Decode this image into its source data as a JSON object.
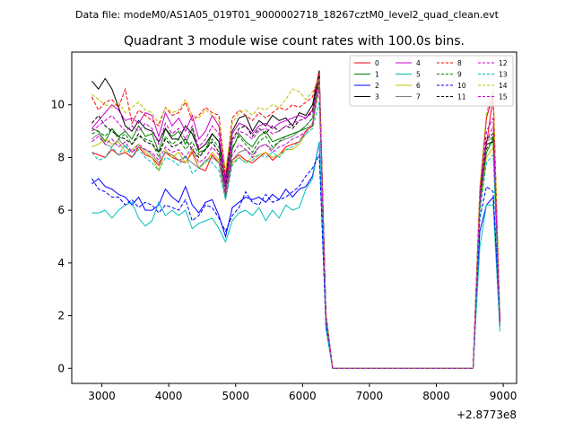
{
  "chart_data": {
    "type": "line",
    "suptitle": "Data file: modeM0/AS1A05_019T01_9000002718_18267cztM0_level2_quad_clean.evt",
    "title": "Quadrant 3 module wise count rates with 100.0s bins.",
    "xlabel": "",
    "ylabel": "",
    "x_offset_label": "+2.8773e8",
    "xlim": [
      2550,
      9200
    ],
    "ylim": [
      -0.57,
      12.0
    ],
    "xticks": [
      3000,
      4000,
      5000,
      6000,
      7000,
      8000,
      9000
    ],
    "xtick_labels": [
      "3000",
      "4000",
      "5000",
      "6000",
      "7000",
      "8000",
      "9000"
    ],
    "yticks": [
      0,
      2,
      4,
      6,
      8,
      10
    ],
    "ytick_labels": [
      "0",
      "2",
      "4",
      "6",
      "8",
      "10"
    ],
    "grid": false,
    "legend_position": "top-right",
    "legend_columns": 4,
    "x": [
      2850,
      2950,
      3050,
      3150,
      3250,
      3350,
      3450,
      3550,
      3650,
      3750,
      3850,
      3950,
      4050,
      4150,
      4250,
      4350,
      4450,
      4550,
      4650,
      4750,
      4850,
      4950,
      5050,
      5150,
      5250,
      5350,
      5450,
      5550,
      5650,
      5750,
      5850,
      5950,
      6050,
      6150,
      6250,
      6350,
      6450,
      6550,
      6650,
      6750,
      6850,
      6950,
      7050,
      7150,
      7250,
      7350,
      7450,
      7550,
      7650,
      7750,
      7850,
      7950,
      8050,
      8150,
      8250,
      8350,
      8450,
      8550,
      8650,
      8750,
      8850,
      8950
    ],
    "series": [
      {
        "name": "0",
        "color": "#ff0000",
        "dash": "solid",
        "values": [
          8.2,
          8.1,
          8.0,
          8.3,
          8.1,
          8.2,
          8.0,
          8.4,
          8.1,
          8.0,
          7.7,
          8.2,
          8.0,
          7.9,
          7.8,
          8.2,
          7.6,
          7.5,
          8.1,
          7.8,
          7.0,
          7.9,
          8.1,
          7.9,
          7.8,
          8.0,
          8.2,
          7.9,
          8.1,
          8.4,
          8.5,
          8.6,
          9.0,
          9.2,
          11.0,
          2.0,
          0.0,
          0.0,
          0.0,
          0.0,
          0.0,
          0.0,
          0.0,
          0.0,
          0.0,
          0.0,
          0.0,
          0.0,
          0.0,
          0.0,
          0.0,
          0.0,
          0.0,
          0.0,
          0.0,
          0.0,
          0.0,
          0.0,
          6.5,
          8.5,
          10.3,
          1.6
        ]
      },
      {
        "name": "1",
        "color": "#008000",
        "dash": "solid",
        "values": [
          9.1,
          9.0,
          8.6,
          9.1,
          8.8,
          9.0,
          8.7,
          9.2,
          8.8,
          8.9,
          8.2,
          9.1,
          8.8,
          9.0,
          8.5,
          9.1,
          8.2,
          8.3,
          8.9,
          8.6,
          6.5,
          8.3,
          8.9,
          8.6,
          8.4,
          8.8,
          9.0,
          8.6,
          8.7,
          8.8,
          8.9,
          9.0,
          9.1,
          9.2,
          10.9,
          1.8,
          0.0,
          0.0,
          0.0,
          0.0,
          0.0,
          0.0,
          0.0,
          0.0,
          0.0,
          0.0,
          0.0,
          0.0,
          0.0,
          0.0,
          0.0,
          0.0,
          0.0,
          0.0,
          0.0,
          0.0,
          0.0,
          0.0,
          6.3,
          8.2,
          8.7,
          1.6
        ]
      },
      {
        "name": "2",
        "color": "#0000ff",
        "dash": "solid",
        "values": [
          7.0,
          7.2,
          6.9,
          6.8,
          6.6,
          6.5,
          6.2,
          6.5,
          6.0,
          6.0,
          6.2,
          6.8,
          6.5,
          6.3,
          6.9,
          6.2,
          5.9,
          6.3,
          6.4,
          5.8,
          5.0,
          6.1,
          6.3,
          6.5,
          6.4,
          6.5,
          6.3,
          6.6,
          6.4,
          6.8,
          6.5,
          6.8,
          6.9,
          7.3,
          8.6,
          1.6,
          0.0,
          0.0,
          0.0,
          0.0,
          0.0,
          0.0,
          0.0,
          0.0,
          0.0,
          0.0,
          0.0,
          0.0,
          0.0,
          0.0,
          0.0,
          0.0,
          0.0,
          0.0,
          0.0,
          0.0,
          0.0,
          0.0,
          5.2,
          6.2,
          6.5,
          1.7
        ]
      },
      {
        "name": "3",
        "color": "#000000",
        "dash": "solid",
        "values": [
          10.9,
          10.6,
          11.0,
          10.6,
          9.9,
          9.2,
          9.0,
          9.4,
          9.1,
          9.0,
          8.6,
          9.1,
          8.7,
          8.7,
          9.2,
          8.9,
          8.3,
          8.5,
          8.9,
          8.6,
          7.2,
          9.0,
          9.5,
          9.6,
          9.0,
          9.4,
          9.2,
          9.6,
          9.4,
          9.5,
          9.2,
          9.7,
          9.6,
          10.0,
          11.3,
          2.1,
          0.0,
          0.0,
          0.0,
          0.0,
          0.0,
          0.0,
          0.0,
          0.0,
          0.0,
          0.0,
          0.0,
          0.0,
          0.0,
          0.0,
          0.0,
          0.0,
          0.0,
          0.0,
          0.0,
          0.0,
          0.0,
          0.0,
          6.6,
          8.5,
          8.6,
          1.9
        ]
      },
      {
        "name": "4",
        "color": "#cc00cc",
        "dash": "solid",
        "values": [
          9.1,
          9.4,
          9.7,
          10.0,
          9.8,
          9.4,
          9.5,
          9.3,
          9.7,
          9.6,
          8.8,
          9.7,
          9.2,
          9.5,
          9.0,
          9.6,
          8.7,
          9.0,
          9.6,
          9.2,
          7.0,
          8.9,
          9.3,
          9.2,
          8.9,
          9.2,
          9.3,
          9.1,
          9.3,
          9.4,
          9.5,
          9.6,
          9.5,
          9.8,
          11.2,
          2.0,
          0.0,
          0.0,
          0.0,
          0.0,
          0.0,
          0.0,
          0.0,
          0.0,
          0.0,
          0.0,
          0.0,
          0.0,
          0.0,
          0.0,
          0.0,
          0.0,
          0.0,
          0.0,
          0.0,
          0.0,
          0.0,
          0.0,
          6.8,
          9.5,
          10.4,
          1.8
        ]
      },
      {
        "name": "5",
        "color": "#00bfbf",
        "dash": "solid",
        "values": [
          5.9,
          5.9,
          6.0,
          5.7,
          6.0,
          6.2,
          6.3,
          5.7,
          5.4,
          5.6,
          6.3,
          5.8,
          6.0,
          5.8,
          6.0,
          5.3,
          5.5,
          5.6,
          5.7,
          5.3,
          4.8,
          5.6,
          5.9,
          6.0,
          5.8,
          6.1,
          5.6,
          6.0,
          5.7,
          6.2,
          6.0,
          6.1,
          6.8,
          7.2,
          8.6,
          1.5,
          0.0,
          0.0,
          0.0,
          0.0,
          0.0,
          0.0,
          0.0,
          0.0,
          0.0,
          0.0,
          0.0,
          0.0,
          0.0,
          0.0,
          0.0,
          0.0,
          0.0,
          0.0,
          0.0,
          0.0,
          0.0,
          0.0,
          4.6,
          6.2,
          6.2,
          1.4
        ]
      },
      {
        "name": "6",
        "color": "#bfbf00",
        "dash": "solid",
        "values": [
          8.4,
          8.5,
          8.7,
          8.5,
          8.6,
          8.2,
          8.3,
          8.5,
          8.2,
          8.0,
          7.5,
          8.3,
          8.0,
          8.2,
          7.8,
          8.3,
          7.6,
          7.8,
          8.2,
          7.9,
          6.6,
          7.8,
          8.0,
          7.8,
          8.0,
          8.1,
          8.2,
          8.0,
          8.1,
          8.3,
          8.3,
          8.5,
          8.9,
          9.3,
          10.8,
          1.9,
          0.0,
          0.0,
          0.0,
          0.0,
          0.0,
          0.0,
          0.0,
          0.0,
          0.0,
          0.0,
          0.0,
          0.0,
          0.0,
          0.0,
          0.0,
          0.0,
          0.0,
          0.0,
          0.0,
          0.0,
          0.0,
          0.0,
          6.0,
          8.0,
          8.4,
          1.7
        ]
      },
      {
        "name": "7",
        "color": "#808080",
        "dash": "solid",
        "values": [
          8.7,
          8.9,
          8.5,
          8.4,
          8.7,
          8.4,
          8.2,
          8.4,
          8.3,
          8.1,
          7.8,
          8.2,
          8.1,
          7.9,
          8.0,
          7.8,
          7.6,
          7.9,
          8.0,
          7.8,
          6.4,
          7.9,
          8.2,
          8.3,
          8.1,
          8.4,
          8.5,
          8.3,
          8.6,
          8.7,
          8.8,
          9.0,
          9.2,
          9.5,
          11.1,
          1.9,
          0.0,
          0.0,
          0.0,
          0.0,
          0.0,
          0.0,
          0.0,
          0.0,
          0.0,
          0.0,
          0.0,
          0.0,
          0.0,
          0.0,
          0.0,
          0.0,
          0.0,
          0.0,
          0.0,
          0.0,
          0.0,
          0.0,
          6.4,
          8.6,
          8.8,
          1.8
        ]
      },
      {
        "name": "8",
        "color": "#ff0000",
        "dash": "dashed",
        "values": [
          10.3,
          9.8,
          10.1,
          10.2,
          9.9,
          10.6,
          9.3,
          9.8,
          9.6,
          9.4,
          9.2,
          9.9,
          9.6,
          9.7,
          10.1,
          9.4,
          9.6,
          9.9,
          9.7,
          9.6,
          7.3,
          9.5,
          9.8,
          9.6,
          9.4,
          9.7,
          9.5,
          9.7,
          9.9,
          9.8,
          10.0,
          9.9,
          10.1,
          10.3,
          11.2,
          2.0,
          0.0,
          0.0,
          0.0,
          0.0,
          0.0,
          0.0,
          0.0,
          0.0,
          0.0,
          0.0,
          0.0,
          0.0,
          0.0,
          0.0,
          0.0,
          0.0,
          0.0,
          0.0,
          0.0,
          0.0,
          0.0,
          0.0,
          6.7,
          9.5,
          10.5,
          1.9
        ]
      },
      {
        "name": "9",
        "color": "#008000",
        "dash": "dashed",
        "values": [
          8.9,
          9.0,
          8.8,
          9.1,
          8.7,
          8.9,
          8.5,
          8.8,
          8.7,
          8.6,
          8.0,
          8.8,
          8.5,
          8.7,
          8.3,
          8.6,
          8.1,
          8.3,
          8.7,
          8.4,
          6.7,
          8.4,
          8.8,
          8.5,
          8.2,
          8.6,
          8.8,
          8.4,
          8.6,
          8.8,
          8.9,
          9.0,
          9.2,
          9.5,
          10.9,
          1.9,
          0.0,
          0.0,
          0.0,
          0.0,
          0.0,
          0.0,
          0.0,
          0.0,
          0.0,
          0.0,
          0.0,
          0.0,
          0.0,
          0.0,
          0.0,
          0.0,
          0.0,
          0.0,
          0.0,
          0.0,
          0.0,
          0.0,
          6.2,
          8.3,
          8.8,
          1.7
        ]
      },
      {
        "name": "10",
        "color": "#0000ff",
        "dash": "dashed",
        "values": [
          7.2,
          6.8,
          6.7,
          6.5,
          6.5,
          6.2,
          6.4,
          6.1,
          6.3,
          6.2,
          5.9,
          6.2,
          6.1,
          6.0,
          6.4,
          5.6,
          5.8,
          6.2,
          6.1,
          5.7,
          5.2,
          5.8,
          6.1,
          6.7,
          6.3,
          6.2,
          6.6,
          6.3,
          6.4,
          6.5,
          6.7,
          6.9,
          7.3,
          7.6,
          8.1,
          1.7,
          0.0,
          0.0,
          0.0,
          0.0,
          0.0,
          0.0,
          0.0,
          0.0,
          0.0,
          0.0,
          0.0,
          0.0,
          0.0,
          0.0,
          0.0,
          0.0,
          0.0,
          0.0,
          0.0,
          0.0,
          0.0,
          0.0,
          5.7,
          6.9,
          6.7,
          1.8
        ]
      },
      {
        "name": "11",
        "color": "#000000",
        "dash": "dashed",
        "values": [
          9.3,
          9.6,
          9.2,
          9.0,
          8.8,
          8.7,
          8.5,
          8.9,
          8.6,
          8.5,
          8.2,
          8.7,
          8.4,
          8.5,
          8.7,
          8.3,
          8.0,
          8.3,
          8.6,
          8.2,
          6.9,
          8.7,
          9.1,
          9.2,
          8.8,
          9.1,
          8.9,
          9.2,
          9.0,
          9.2,
          9.1,
          9.4,
          9.5,
          9.8,
          11.1,
          2.0,
          0.0,
          0.0,
          0.0,
          0.0,
          0.0,
          0.0,
          0.0,
          0.0,
          0.0,
          0.0,
          0.0,
          0.0,
          0.0,
          0.0,
          0.0,
          0.0,
          0.0,
          0.0,
          0.0,
          0.0,
          0.0,
          0.0,
          6.5,
          8.7,
          8.9,
          1.8
        ]
      },
      {
        "name": "12",
        "color": "#cc00cc",
        "dash": "dashed",
        "values": [
          9.0,
          9.2,
          9.4,
          9.6,
          9.3,
          9.0,
          9.2,
          9.0,
          9.3,
          9.1,
          8.5,
          9.3,
          8.9,
          9.1,
          8.7,
          9.2,
          8.4,
          8.7,
          9.2,
          8.9,
          6.8,
          8.6,
          9.0,
          8.9,
          8.7,
          9.0,
          9.1,
          8.9,
          9.0,
          9.2,
          9.3,
          9.4,
          9.5,
          9.7,
          11.0,
          2.0,
          0.0,
          0.0,
          0.0,
          0.0,
          0.0,
          0.0,
          0.0,
          0.0,
          0.0,
          0.0,
          0.0,
          0.0,
          0.0,
          0.0,
          0.0,
          0.0,
          0.0,
          0.0,
          0.0,
          0.0,
          0.0,
          0.0,
          6.6,
          9.0,
          9.5,
          1.8
        ]
      },
      {
        "name": "13",
        "color": "#00bfbf",
        "dash": "dashed",
        "values": [
          8.2,
          7.9,
          8.0,
          8.4,
          8.1,
          8.5,
          8.0,
          8.3,
          8.0,
          7.8,
          7.5,
          8.0,
          7.9,
          7.7,
          8.1,
          7.4,
          7.6,
          7.9,
          7.8,
          7.5,
          6.4,
          7.7,
          8.0,
          7.8,
          7.9,
          8.1,
          8.0,
          8.2,
          8.0,
          8.3,
          8.4,
          8.6,
          8.9,
          9.1,
          10.1,
          1.8,
          0.0,
          0.0,
          0.0,
          0.0,
          0.0,
          0.0,
          0.0,
          0.0,
          0.0,
          0.0,
          0.0,
          0.0,
          0.0,
          0.0,
          0.0,
          0.0,
          0.0,
          0.0,
          0.0,
          0.0,
          0.0,
          0.0,
          5.9,
          7.8,
          8.1,
          1.7
        ]
      },
      {
        "name": "14",
        "color": "#bfbf00",
        "dash": "dashed",
        "values": [
          10.4,
          10.2,
          10.0,
          9.9,
          10.1,
          9.7,
          9.9,
          10.1,
          9.8,
          9.7,
          9.3,
          9.9,
          9.7,
          9.8,
          10.2,
          9.6,
          9.5,
          9.8,
          9.6,
          9.4,
          7.5,
          9.3,
          9.7,
          9.8,
          9.6,
          9.9,
          9.8,
          10.0,
          9.9,
          10.2,
          10.6,
          10.5,
          10.2,
          10.5,
          11.0,
          2.1,
          0.0,
          0.0,
          0.0,
          0.0,
          0.0,
          0.0,
          0.0,
          0.0,
          0.0,
          0.0,
          0.0,
          0.0,
          0.0,
          0.0,
          0.0,
          0.0,
          0.0,
          0.0,
          0.0,
          0.0,
          0.0,
          0.0,
          6.9,
          9.7,
          10.6,
          2.0
        ]
      },
      {
        "name": "15",
        "color": "#cc00cc",
        "dash": "dashed",
        "values": [
          8.6,
          8.8,
          8.5,
          8.7,
          8.4,
          8.6,
          8.2,
          8.5,
          8.3,
          8.2,
          7.9,
          8.4,
          8.2,
          8.3,
          8.0,
          8.4,
          7.8,
          8.0,
          8.4,
          8.1,
          6.6,
          8.1,
          8.5,
          8.3,
          8.0,
          8.4,
          8.5,
          8.2,
          8.4,
          8.5,
          8.7,
          8.8,
          9.0,
          9.3,
          10.6,
          1.9,
          0.0,
          0.0,
          0.0,
          0.0,
          0.0,
          0.0,
          0.0,
          0.0,
          0.0,
          0.0,
          0.0,
          0.0,
          0.0,
          0.0,
          0.0,
          0.0,
          0.0,
          0.0,
          0.0,
          0.0,
          0.0,
          0.0,
          6.3,
          8.6,
          9.2,
          1.7
        ]
      }
    ]
  }
}
